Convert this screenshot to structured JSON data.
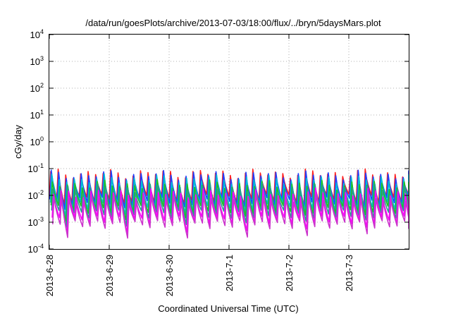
{
  "chart_data": {
    "type": "line",
    "title": "/data/run/goesPlots/archive/2013-07-03/18:00/flux/../bryn/5daysMars.plot",
    "xlabel": "Coordinated Universal Time (UTC)",
    "ylabel": "cGy/day",
    "y_scale": "log",
    "ylim": [
      0.0001,
      10000
    ],
    "y_ticks": [
      {
        "value": 0.0001,
        "base": "10",
        "exp": "-4"
      },
      {
        "value": 0.001,
        "base": "10",
        "exp": "-3"
      },
      {
        "value": 0.01,
        "base": "10",
        "exp": "-2"
      },
      {
        "value": 0.1,
        "base": "10",
        "exp": "-1"
      },
      {
        "value": 1,
        "base": "10",
        "exp": "0"
      },
      {
        "value": 10,
        "base": "10",
        "exp": "1"
      },
      {
        "value": 100,
        "base": "10",
        "exp": "2"
      },
      {
        "value": 1000,
        "base": "10",
        "exp": "3"
      },
      {
        "value": 10000,
        "base": "10",
        "exp": "4"
      }
    ],
    "xlim": [
      "2013-06-28",
      "2013-07-03T18:00"
    ],
    "x_ticks": [
      "2013-6-28",
      "2013-6-29",
      "2013-6-30",
      "2013-7-1",
      "2013-7-2",
      "2013-7-3"
    ],
    "grid": true,
    "sawtooth_cycles_per_day": 8,
    "series": [
      {
        "color": "#ff2020",
        "peak": 0.065,
        "trough": 0.008
      },
      {
        "color": "#2040ff",
        "peak": 0.058,
        "trough": 0.006
      },
      {
        "color": "#00bcd4",
        "peak": 0.04,
        "trough": 0.004
      },
      {
        "color": "#20c020",
        "peak": 0.025,
        "trough": 0.003
      },
      {
        "color": "#2a9d8f",
        "peak": 0.018,
        "trough": 0.002
      },
      {
        "color": "#ff00ff",
        "peak": 0.012,
        "trough": 0.0012
      },
      {
        "color": "#cc33cc",
        "peak": 0.008,
        "trough": 0.0008
      }
    ]
  }
}
